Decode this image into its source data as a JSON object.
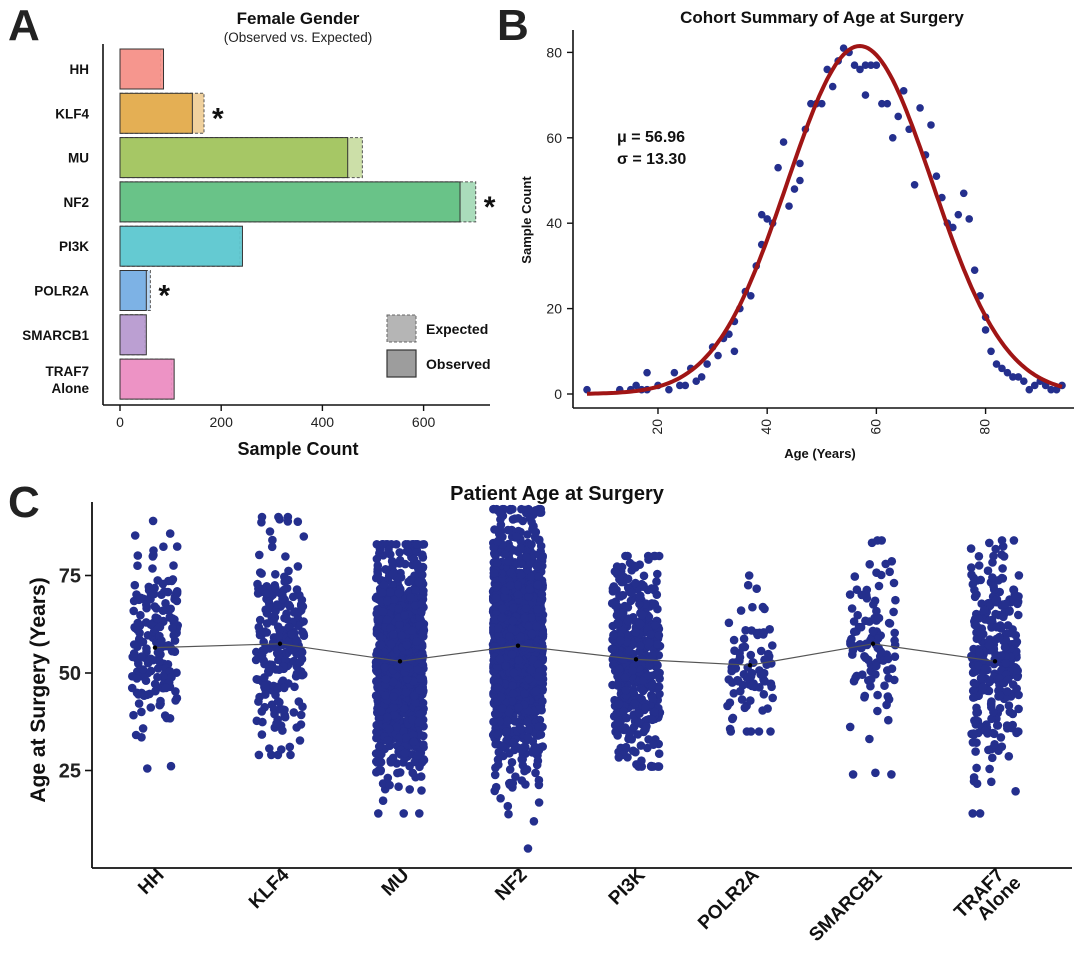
{
  "panels": {
    "A": {
      "letter": "A",
      "title": "Female Gender",
      "subtitle": "(Observed vs. Expected)"
    },
    "B": {
      "letter": "B"
    },
    "C": {
      "letter": "C"
    }
  },
  "chart_data": [
    {
      "type": "bar",
      "panel": "A",
      "orientation": "horizontal",
      "title": "Female Gender",
      "subtitle": "(Observed vs. Expected)",
      "xlabel": "Sample Count",
      "ylabel": "",
      "xlim": [
        -30,
        715
      ],
      "xticks": [
        "0",
        "200",
        "400",
        "600"
      ],
      "categories": [
        "HH",
        "KLF4",
        "MU",
        "NF2",
        "PI3K",
        "POLR2A",
        "SMARCB1",
        "TRAF7 Alone"
      ],
      "series": [
        {
          "name": "Observed",
          "values": [
            86,
            143,
            450,
            672,
            242,
            52,
            52,
            107
          ]
        },
        {
          "name": "Expected",
          "values": [
            80,
            166,
            479,
            703,
            237,
            60,
            49,
            102
          ]
        }
      ],
      "significance": [
        "",
        "*",
        "",
        "*",
        "",
        "*",
        "",
        ""
      ],
      "colors": [
        "#f5928a",
        "#e3ab4e",
        "#a3c460",
        "#64c083",
        "#5ec8d0",
        "#78afe4",
        "#b89bd0",
        "#ec8fc2"
      ],
      "legend": {
        "position": "bottom-right",
        "items": [
          "Expected",
          "Observed"
        ]
      },
      "grid": false
    },
    {
      "type": "scatter",
      "panel": "B",
      "title": "Cohort Summary of Age at Surgery",
      "xlabel": "Age (Years)",
      "ylabel": "Sample Count",
      "xlim": [
        5,
        96
      ],
      "ylim": [
        -2,
        82
      ],
      "xticks": [
        "20",
        "40",
        "60",
        "80"
      ],
      "yticks": [
        "0",
        "20",
        "40",
        "60",
        "80"
      ],
      "annotation": [
        "μ = 56.96",
        "σ = 13.30"
      ],
      "points": [
        [
          7,
          1
        ],
        [
          13,
          1
        ],
        [
          15,
          1
        ],
        [
          16,
          2
        ],
        [
          17,
          1
        ],
        [
          18,
          5
        ],
        [
          18,
          1
        ],
        [
          20,
          2
        ],
        [
          22,
          1
        ],
        [
          23,
          5
        ],
        [
          24,
          2
        ],
        [
          25,
          2
        ],
        [
          26,
          6
        ],
        [
          27,
          3
        ],
        [
          28,
          4
        ],
        [
          29,
          7
        ],
        [
          30,
          11
        ],
        [
          31,
          9
        ],
        [
          32,
          13
        ],
        [
          33,
          14
        ],
        [
          34,
          17
        ],
        [
          34,
          10
        ],
        [
          35,
          20
        ],
        [
          36,
          24
        ],
        [
          37,
          23
        ],
        [
          38,
          30
        ],
        [
          39,
          35
        ],
        [
          39,
          42
        ],
        [
          40,
          41
        ],
        [
          41,
          40
        ],
        [
          42,
          53
        ],
        [
          43,
          59
        ],
        [
          44,
          44
        ],
        [
          45,
          48
        ],
        [
          46,
          50
        ],
        [
          46,
          54
        ],
        [
          47,
          62
        ],
        [
          48,
          68
        ],
        [
          49,
          68
        ],
        [
          50,
          68
        ],
        [
          51,
          76
        ],
        [
          52,
          72
        ],
        [
          53,
          78
        ],
        [
          54,
          81
        ],
        [
          55,
          80
        ],
        [
          56,
          77
        ],
        [
          57,
          76
        ],
        [
          58,
          70
        ],
        [
          58,
          77
        ],
        [
          59,
          77
        ],
        [
          60,
          77
        ],
        [
          61,
          68
        ],
        [
          62,
          68
        ],
        [
          63,
          60
        ],
        [
          64,
          65
        ],
        [
          65,
          71
        ],
        [
          66,
          62
        ],
        [
          67,
          49
        ],
        [
          68,
          67
        ],
        [
          69,
          56
        ],
        [
          70,
          63
        ],
        [
          71,
          51
        ],
        [
          72,
          46
        ],
        [
          73,
          40
        ],
        [
          74,
          39
        ],
        [
          75,
          42
        ],
        [
          76,
          47
        ],
        [
          77,
          41
        ],
        [
          78,
          29
        ],
        [
          79,
          23
        ],
        [
          80,
          18
        ],
        [
          80,
          15
        ],
        [
          81,
          10
        ],
        [
          82,
          7
        ],
        [
          83,
          6
        ],
        [
          84,
          5
        ],
        [
          85,
          4
        ],
        [
          86,
          4
        ],
        [
          87,
          3
        ],
        [
          88,
          1
        ],
        [
          89,
          2
        ],
        [
          90,
          3
        ],
        [
          91,
          2
        ],
        [
          92,
          1
        ],
        [
          93,
          1
        ],
        [
          94,
          2
        ]
      ],
      "fit": {
        "type": "normal",
        "mu": 56.96,
        "sigma": 13.3,
        "peak": 81.5
      },
      "colors": {
        "points": "#242f8d",
        "curve": "#a01515"
      },
      "grid": false
    },
    {
      "type": "scatter",
      "subtype": "jitter-strip",
      "panel": "C",
      "title": "Patient Age at Surgery",
      "xlabel": "",
      "ylabel": "Age at Surgery (Years)",
      "ylim": [
        0,
        95
      ],
      "yticks": [
        "25",
        "50",
        "75"
      ],
      "categories": [
        "HH",
        "KLF4",
        "MU",
        "NF2",
        "PI3K",
        "POLR2A",
        "SMARCB1",
        "TRAF7 Alone"
      ],
      "category_labels": [
        [
          "HH"
        ],
        [
          "KLF4"
        ],
        [
          "MU"
        ],
        [
          "NF2"
        ],
        [
          "PI3K"
        ],
        [
          "POLR2A"
        ],
        [
          "SMARCB1"
        ],
        [
          "TRAF7",
          "Alone"
        ]
      ],
      "groups": [
        {
          "name": "HH",
          "n": 170,
          "mean": 56.5,
          "sd": 11,
          "min": 25.5,
          "max": 89
        },
        {
          "name": "KLF4",
          "n": 240,
          "mean": 57.5,
          "sd": 12,
          "min": 29,
          "max": 90
        },
        {
          "name": "MU",
          "n": 1100,
          "mean": 53.0,
          "sd": 14,
          "min": 14,
          "max": 83
        },
        {
          "name": "NF2",
          "n": 1600,
          "mean": 57.0,
          "sd": 14,
          "min": 5,
          "max": 92
        },
        {
          "name": "PI3K",
          "n": 480,
          "mean": 53.5,
          "sd": 12,
          "min": 26,
          "max": 80
        },
        {
          "name": "POLR2A",
          "n": 85,
          "mean": 52.0,
          "sd": 9,
          "min": 35,
          "max": 75
        },
        {
          "name": "SMARCB1",
          "n": 100,
          "mean": 57.5,
          "sd": 12,
          "min": 24,
          "max": 84
        },
        {
          "name": "TRAF7 Alone",
          "n": 290,
          "mean": 53.0,
          "sd": 13,
          "min": 14,
          "max": 84
        }
      ],
      "colors": {
        "points": "#242f8d",
        "mean_line": "#555555"
      },
      "grid": false
    }
  ]
}
